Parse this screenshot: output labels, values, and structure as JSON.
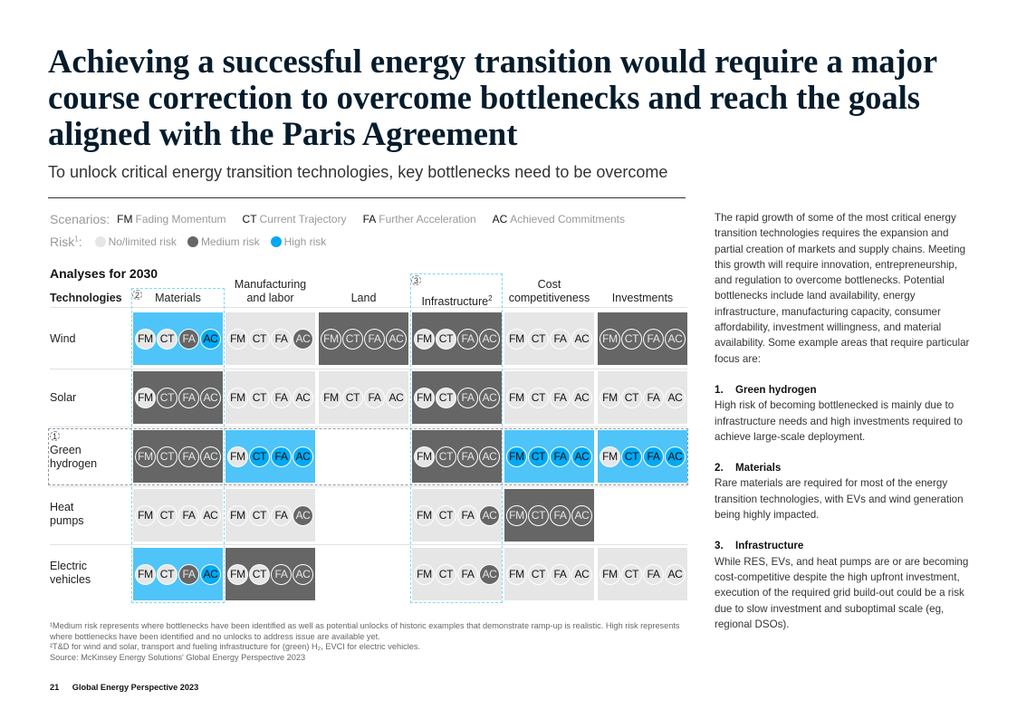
{
  "title": "Achieving a successful energy transition would require a major course correction to overcome bottlenecks and reach the goals aligned with the Paris Agreement",
  "subtitle": "To unlock critical energy transition technologies, key bottlenecks need to be overcome",
  "legend": {
    "scenarios_label": "Scenarios:",
    "scenarios": [
      {
        "code": "FM",
        "name": "Fading Momentum"
      },
      {
        "code": "CT",
        "name": "Current Trajectory"
      },
      {
        "code": "FA",
        "name": "Further Acceleration"
      },
      {
        "code": "AC",
        "name": "Achieved Commitments"
      }
    ],
    "risk_label": "Risk",
    "risk_sup": "1",
    "risks": [
      {
        "key": "L",
        "name": "No/limited risk",
        "color": "#e6e6e6"
      },
      {
        "key": "M",
        "name": "Medium risk",
        "color": "#666666"
      },
      {
        "key": "H",
        "name": "High risk",
        "color": "#00a9f4"
      }
    ]
  },
  "colors": {
    "L": "#e6e6e6",
    "M": "#666666",
    "H": "#00a9f4",
    "cellH": "#4fc4f8"
  },
  "analyses_title": "Analyses for 2030",
  "tech_header": "Technologies",
  "columns": [
    {
      "line1": "",
      "line2": "Materials",
      "marker": "2"
    },
    {
      "line1": "Manufacturing",
      "line2": "and labor"
    },
    {
      "line1": "",
      "line2": "Land"
    },
    {
      "line1": "",
      "line2": "Infrastructure",
      "sup": "2",
      "marker": "3"
    },
    {
      "line1": "Cost",
      "line2": "competitiveness"
    },
    {
      "line1": "",
      "line2": "Investments"
    }
  ],
  "rows": [
    {
      "line1": "Wind",
      "line2": "",
      "cells": [
        {
          "bg": "H",
          "r": [
            "L",
            "L",
            "M",
            "H"
          ]
        },
        {
          "bg": "L",
          "r": [
            "L",
            "L",
            "L",
            "M"
          ]
        },
        {
          "bg": "M",
          "r": [
            "M",
            "M",
            "M",
            "M"
          ]
        },
        {
          "bg": "M",
          "r": [
            "L",
            "L",
            "M",
            "M"
          ]
        },
        {
          "bg": "L",
          "r": [
            "L",
            "L",
            "L",
            "L"
          ]
        },
        {
          "bg": "M",
          "r": [
            "M",
            "M",
            "M",
            "M"
          ]
        }
      ]
    },
    {
      "line1": "Solar",
      "line2": "",
      "cells": [
        {
          "bg": "M",
          "r": [
            "L",
            "M",
            "M",
            "M"
          ]
        },
        {
          "bg": "L",
          "r": [
            "L",
            "L",
            "L",
            "L"
          ]
        },
        {
          "bg": "L",
          "r": [
            "L",
            "L",
            "L",
            "L"
          ]
        },
        {
          "bg": "M",
          "r": [
            "L",
            "L",
            "M",
            "M"
          ]
        },
        {
          "bg": "L",
          "r": [
            "L",
            "L",
            "L",
            "L"
          ]
        },
        {
          "bg": "L",
          "r": [
            "L",
            "L",
            "L",
            "L"
          ]
        }
      ]
    },
    {
      "line1": "Green",
      "line2": "hydrogen",
      "marker": "1",
      "cells": [
        {
          "bg": "M",
          "r": [
            "M",
            "M",
            "M",
            "M"
          ]
        },
        {
          "bg": "H",
          "r": [
            "L",
            "H",
            "H",
            "H"
          ]
        },
        null,
        {
          "bg": "M",
          "r": [
            "L",
            "M",
            "M",
            "M"
          ]
        },
        {
          "bg": "H",
          "r": [
            "H",
            "H",
            "H",
            "H"
          ]
        },
        {
          "bg": "H",
          "r": [
            "L",
            "H",
            "H",
            "H"
          ]
        }
      ]
    },
    {
      "line1": "Heat",
      "line2": "pumps",
      "cells": [
        {
          "bg": "L",
          "r": [
            "L",
            "L",
            "L",
            "L"
          ]
        },
        {
          "bg": "L",
          "r": [
            "L",
            "L",
            "L",
            "M"
          ]
        },
        null,
        {
          "bg": "L",
          "r": [
            "L",
            "L",
            "L",
            "M"
          ]
        },
        {
          "bg": "M",
          "r": [
            "M",
            "M",
            "M",
            "M"
          ]
        },
        null
      ]
    },
    {
      "line1": "Electric",
      "line2": "vehicles",
      "cells": [
        {
          "bg": "H",
          "r": [
            "L",
            "L",
            "M",
            "H"
          ]
        },
        {
          "bg": "M",
          "r": [
            "L",
            "L",
            "M",
            "M"
          ]
        },
        null,
        {
          "bg": "L",
          "r": [
            "L",
            "L",
            "L",
            "M"
          ]
        },
        {
          "bg": "L",
          "r": [
            "L",
            "L",
            "L",
            "L"
          ]
        },
        {
          "bg": "L",
          "r": [
            "L",
            "L",
            "L",
            "L"
          ]
        }
      ]
    }
  ],
  "body": {
    "intro": "The rapid growth of some of the most critical energy transition technologies requires the expansion and partial creation of markets and supply chains. Meeting this growth will require innovation, entrepreneurship, and regulation to overcome bottlenecks. Potential bottlenecks include land availability, energy infrastructure, manufacturing capacity, consumer affordability, investment willingness, and material availability. Some example areas that require particular focus are:",
    "sections": [
      {
        "num": "1.",
        "title": "Green hydrogen",
        "text": "High risk of becoming bottlenecked is mainly due to infrastructure needs and high investments required to achieve large-scale deployment."
      },
      {
        "num": "2.",
        "title": "Materials",
        "text": "Rare materials are required for most of the energy transition technologies, with EVs and wind generation being highly impacted."
      },
      {
        "num": "3.",
        "title": "Infrastructure",
        "text": "While RES, EVs, and heat pumps are or are becoming cost-competitive despite the high upfront investment, execution of the required grid build-out could be a risk due to slow investment and suboptimal scale (eg, regional DSOs)."
      }
    ]
  },
  "footnotes": [
    "¹Medium risk represents where bottlenecks have been identified as well as potential unlocks of historic examples that demonstrate ramp-up is realistic. High risk represents where bottlenecks have been identified and no unlocks to address issue are available yet.",
    "²T&D for wind and solar, transport and fueling infrastructure for (green) H₂, EVCI for electric vehicles.",
    "Source: McKinsey Energy Solutions' Global Energy Perspective 2023"
  ],
  "footer": {
    "page": "21",
    "publication": "Global Energy Perspective 2023"
  }
}
